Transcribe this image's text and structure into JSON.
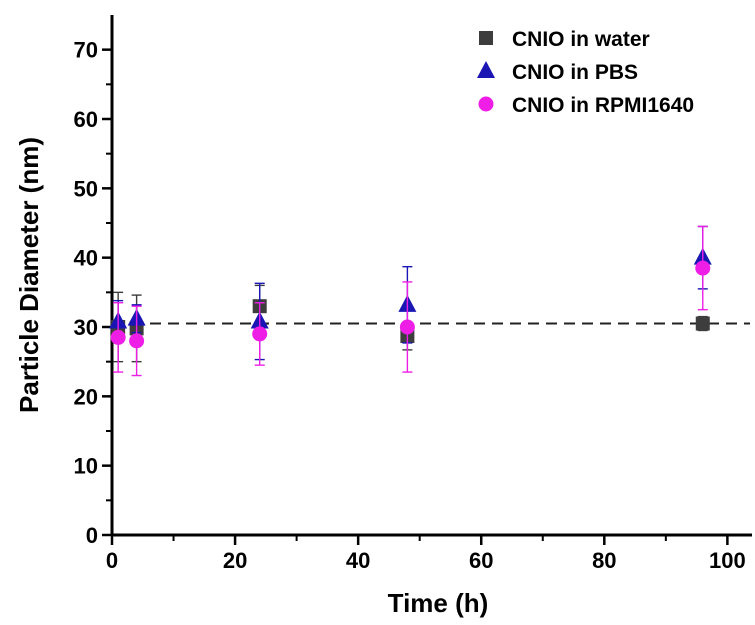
{
  "chart_data": {
    "type": "scatter",
    "xlabel": "Time (h)",
    "ylabel": "Particle Diameter (nm)",
    "xlim": [
      0,
      104
    ],
    "ylim": [
      0,
      75
    ],
    "x_ticks": [
      "0",
      "20",
      "40",
      "60",
      "80",
      "100"
    ],
    "y_ticks": [
      "0",
      "10",
      "20",
      "30",
      "40",
      "50",
      "60",
      "70"
    ],
    "x_tick_values": [
      0,
      20,
      40,
      60,
      80,
      100
    ],
    "y_tick_values": [
      0,
      10,
      20,
      30,
      40,
      50,
      60,
      70
    ],
    "reference_line": {
      "y": 30.5,
      "style": "dashed"
    },
    "legend_position": "top-right",
    "series": [
      {
        "name": "CNIO in water",
        "marker": "square",
        "color": "#3d3d3d",
        "points": [
          {
            "x": 1,
            "y": 30.0,
            "err": 5.0
          },
          {
            "x": 4,
            "y": 29.8,
            "err": 4.8
          },
          {
            "x": 24,
            "y": 33.0,
            "err": 3.0
          },
          {
            "x": 48,
            "y": 28.7,
            "err": 2.0
          },
          {
            "x": 96,
            "y": 30.5,
            "err": 1.0
          }
        ]
      },
      {
        "name": "CNIO in PBS",
        "marker": "triangle",
        "color": "#1a16b4",
        "points": [
          {
            "x": 1,
            "y": 30.8,
            "err": 3.0
          },
          {
            "x": 4,
            "y": 31.2,
            "err": 2.0
          },
          {
            "x": 24,
            "y": 30.8,
            "err": 5.5
          },
          {
            "x": 48,
            "y": 33.2,
            "err": 5.5
          },
          {
            "x": 96,
            "y": 40.0,
            "err": 4.5
          }
        ]
      },
      {
        "name": "CNIO in RPMI1640",
        "marker": "circle",
        "color": "#ee1ee6",
        "points": [
          {
            "x": 1,
            "y": 28.5,
            "err": 5.0
          },
          {
            "x": 4,
            "y": 28.0,
            "err": 5.0
          },
          {
            "x": 24,
            "y": 29.0,
            "err": 4.5
          },
          {
            "x": 48,
            "y": 30.0,
            "err": 6.5
          },
          {
            "x": 96,
            "y": 38.5,
            "err": 6.0
          }
        ]
      }
    ]
  }
}
